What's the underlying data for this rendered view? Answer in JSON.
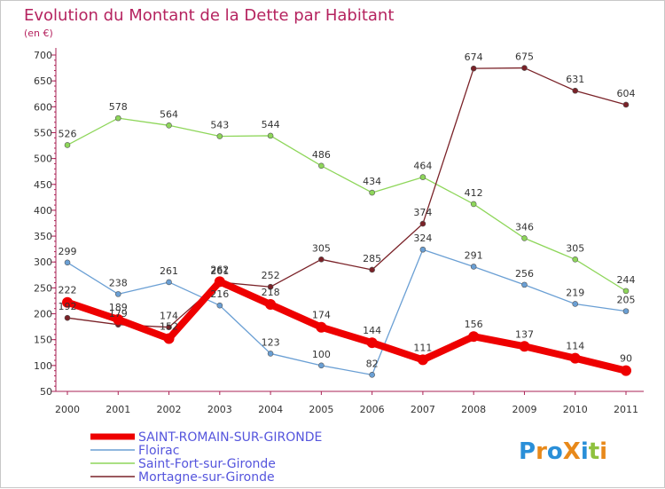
{
  "chart_data": {
    "type": "line",
    "title": "Evolution du Montant de la Dette par Habitant",
    "subtitle": "(en €)",
    "x": [
      "2000",
      "2001",
      "2002",
      "2003",
      "2004",
      "2005",
      "2006",
      "2007",
      "2008",
      "2009",
      "2010",
      "2011"
    ],
    "ylim": [
      50,
      700
    ],
    "yticks": [
      50,
      100,
      150,
      200,
      250,
      300,
      350,
      400,
      450,
      500,
      550,
      600,
      650,
      700
    ],
    "grid": false,
    "legend_position": "bottom-left",
    "series": [
      {
        "name": "SAINT-ROMAIN-SUR-GIRONDE",
        "color": "#ee0000",
        "values": [
          222,
          189,
          152,
          262,
          218,
          174,
          144,
          111,
          156,
          137,
          114,
          90
        ]
      },
      {
        "name": "Floirac",
        "color": "#6a9fd4",
        "values": [
          299,
          238,
          261,
          216,
          123,
          100,
          82,
          324,
          291,
          256,
          219,
          205
        ]
      },
      {
        "name": "Saint-Fort-sur-Gironde",
        "color": "#8ed65a",
        "values": [
          526,
          578,
          564,
          543,
          544,
          486,
          434,
          464,
          412,
          346,
          305,
          244
        ]
      },
      {
        "name": "Mortagne-sur-Gironde",
        "color": "#7a2228",
        "values": [
          192,
          179,
          174,
          261,
          252,
          305,
          285,
          374,
          674,
          675,
          631,
          604
        ]
      }
    ]
  },
  "logo": {
    "text": "ProXiti"
  }
}
